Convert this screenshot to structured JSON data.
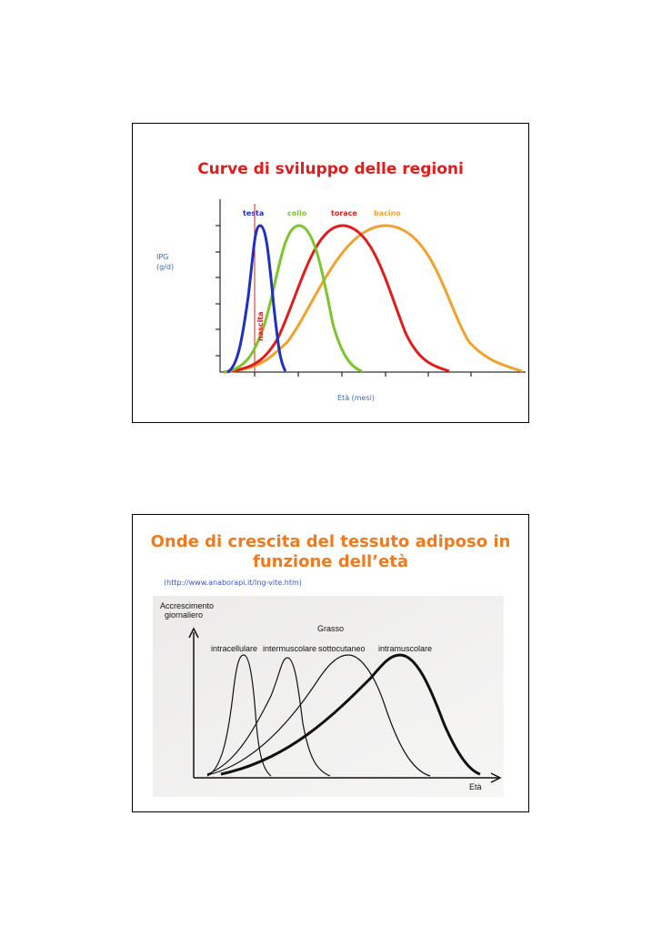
{
  "slide1": {
    "title": "Curve di sviluppo delle regioni",
    "ylabel": [
      "IPG",
      "(g/d)"
    ],
    "xlabel": "Età (mesi)",
    "marker_label": "nascita",
    "colors": {
      "testa": "#1f2fbf",
      "collo": "#7cc52c",
      "torace": "#e21b1b",
      "bacino": "#f2a22a"
    }
  },
  "chart_data": {
    "type": "line",
    "series": [
      {
        "name": "testa",
        "color": "#1f2fbf"
      },
      {
        "name": "collo",
        "color": "#7cc52c"
      },
      {
        "name": "torace",
        "color": "#e21b1b"
      },
      {
        "name": "bacino",
        "color": "#f2a22a"
      }
    ],
    "xlabel": "Età (mesi)",
    "ylabel": "IPG (g/d)",
    "annotations": [
      "nascita"
    ],
    "grid": false,
    "legend": "top"
  },
  "slide2": {
    "title": "Onde di crescita del tessuto adiposo in funzione dell’età",
    "source": "(http://www.anaborapi.it/Ing-vite.htm)",
    "figure": {
      "ylabel": [
        "Accrescimento",
        "giornaliero"
      ],
      "group_label": "Grasso",
      "curves": [
        "intracellulare",
        "intermuscolare",
        "sottocutaneo",
        "intramuscolare"
      ],
      "xlabel": "Età"
    }
  }
}
